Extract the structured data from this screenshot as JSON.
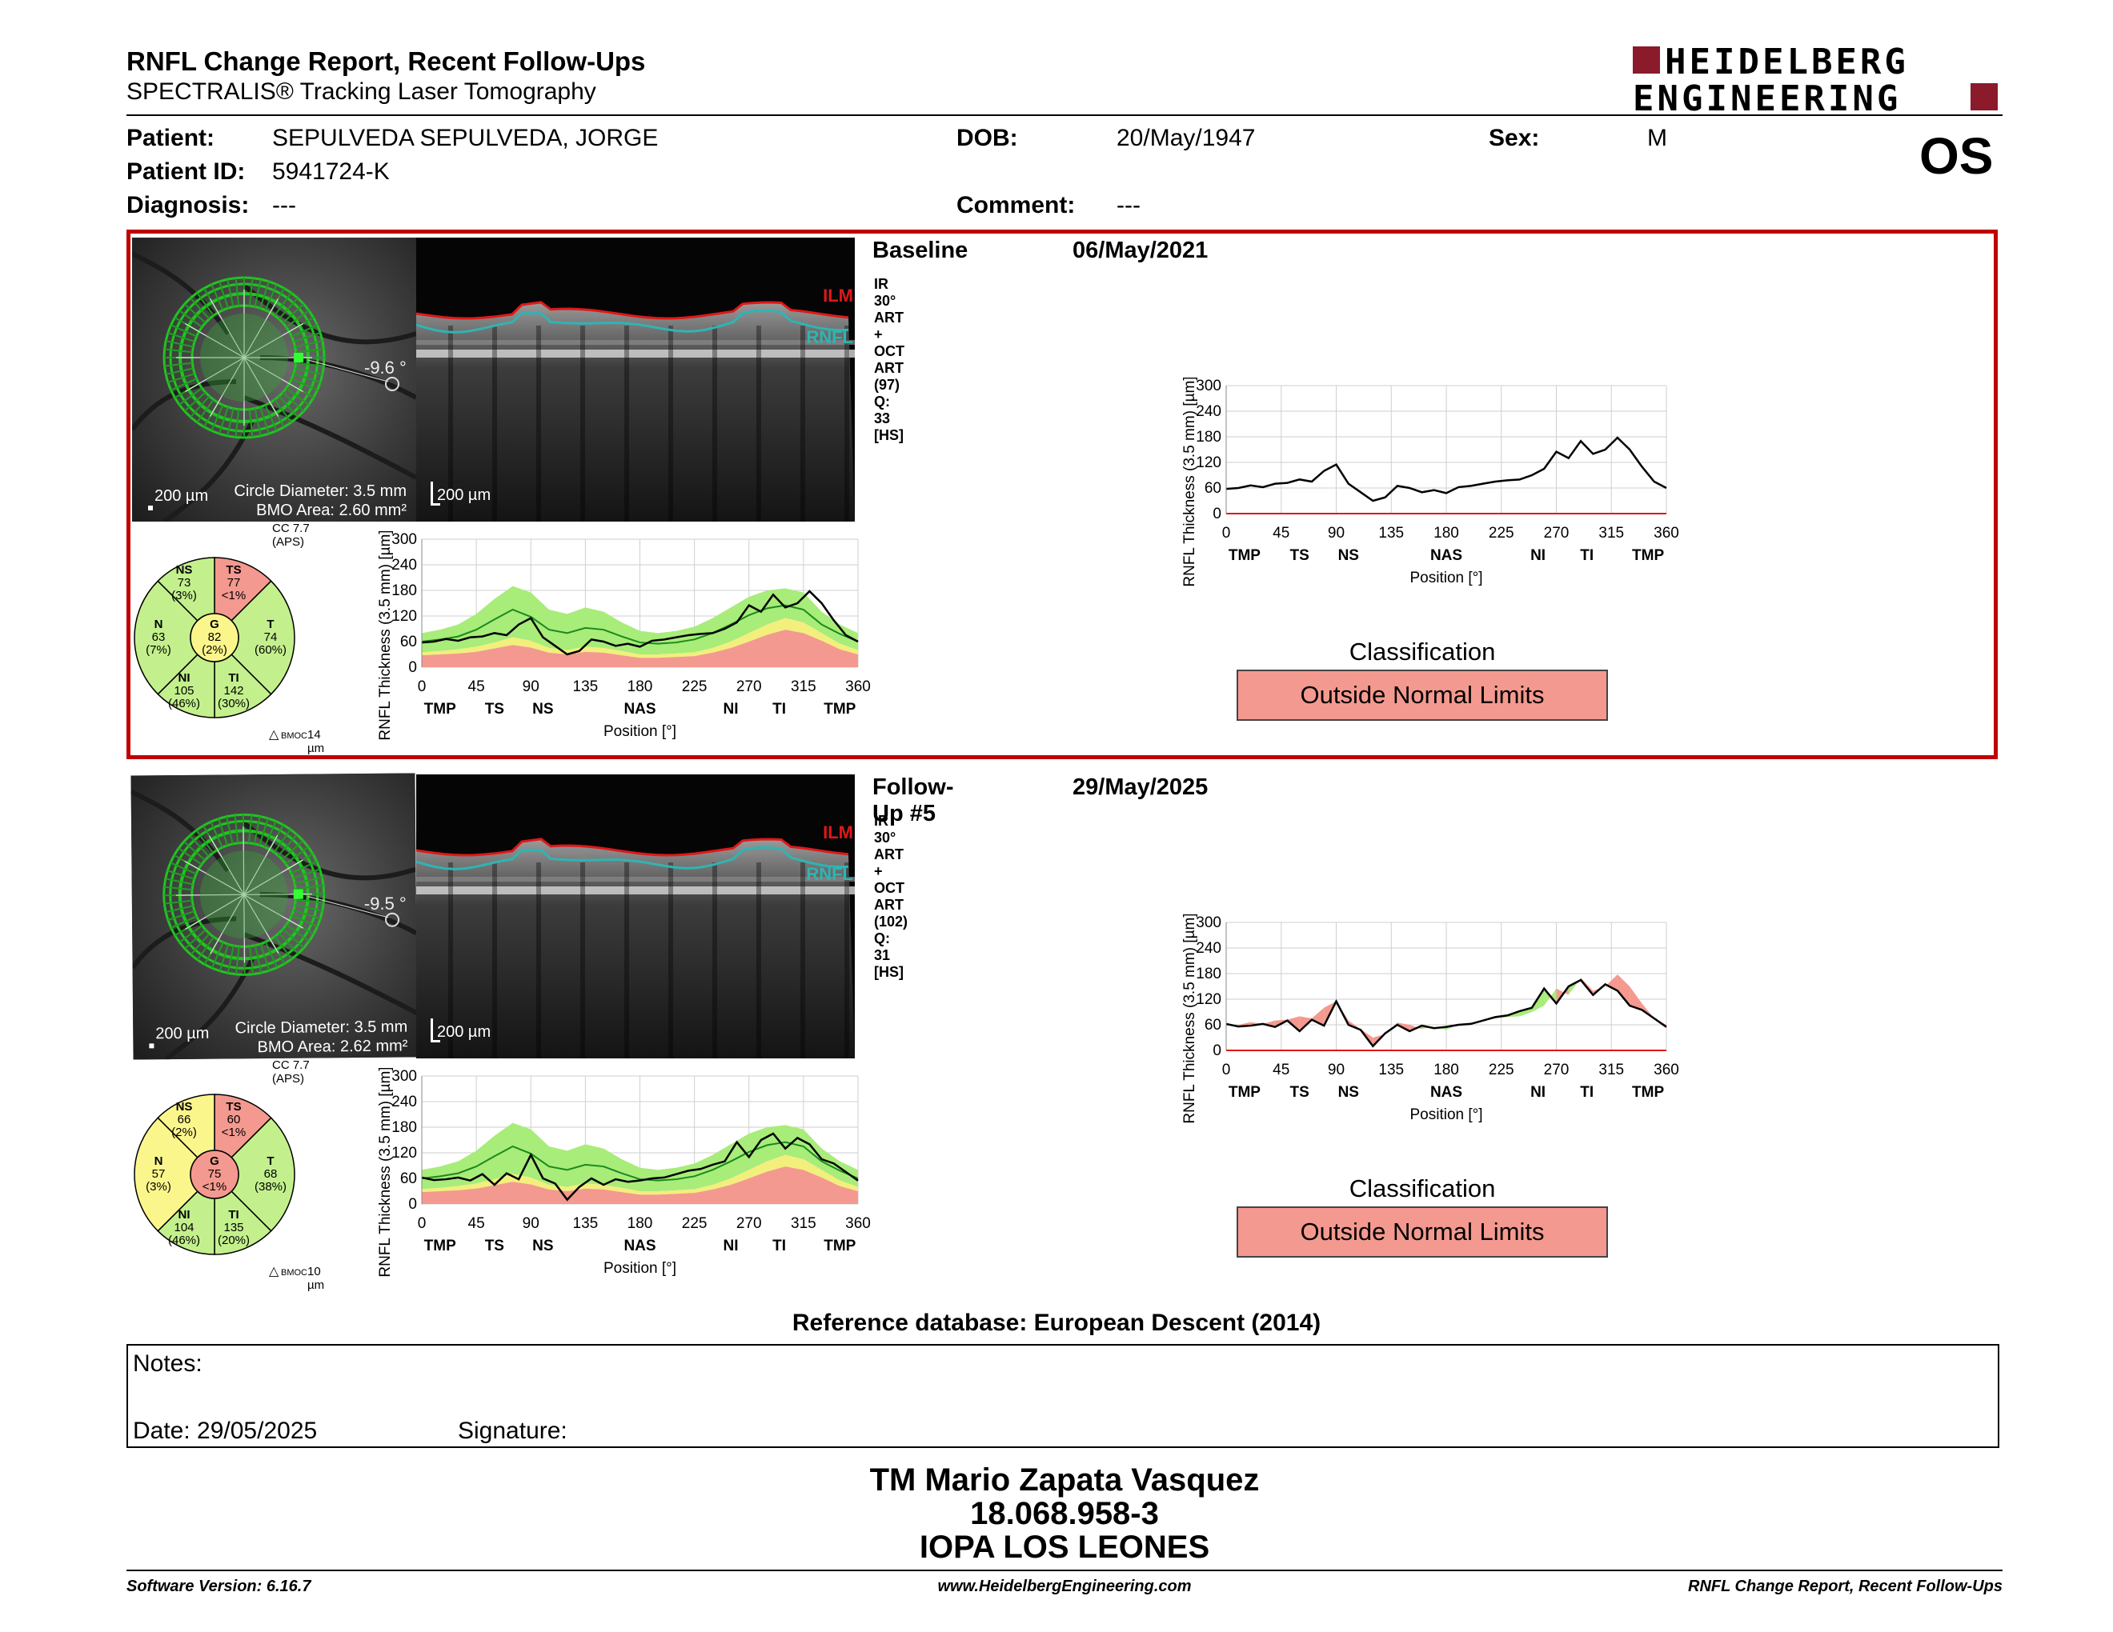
{
  "header": {
    "title": "RNFL Change Report, Recent Follow-Ups",
    "subtitle": "SPECTRALIS® Tracking Laser Tomography",
    "logo_line1": "HEIDELBERG",
    "logo_line2": "ENGINEERING",
    "eye": "OS"
  },
  "patient": {
    "patient_label": "Patient:",
    "patient_value": "SEPULVEDA SEPULVEDA, JORGE",
    "dob_label": "DOB:",
    "dob_value": "20/May/1947",
    "sex_label": "Sex:",
    "sex_value": "M",
    "id_label": "Patient ID:",
    "id_value": "5941724-K",
    "diagnosis_label": "Diagnosis:",
    "diagnosis_value": "---",
    "comment_label": "Comment:",
    "comment_value": "---"
  },
  "exams": [
    {
      "label": "Baseline",
      "date": "06/May/2021",
      "scan_info": "IR 30° ART + OCT ART (97) Q: 33 [HS]",
      "angle": "-9.6 °",
      "scale": "200 µm",
      "circle_diameter": "Circle Diameter: 3.5 mm",
      "bmo_area": "BMO Area: 2.60 mm²",
      "oct_scale": "200 µm",
      "ilm": "ILM",
      "rnfl": "RNFL",
      "cc": "CC 7.7 (APS)",
      "bmoc": "14 µm",
      "sectors": {
        "NS": {
          "name": "NS",
          "value": "73",
          "pct": "(3%)",
          "color": "#c3f08c"
        },
        "TS": {
          "name": "TS",
          "value": "77",
          "pct": "<1%",
          "color": "#f4998f"
        },
        "N": {
          "name": "N",
          "value": "63",
          "pct": "(7%)",
          "color": "#c3f08c"
        },
        "G": {
          "name": "G",
          "value": "82",
          "pct": "(2%)",
          "color": "#fbf68c"
        },
        "T": {
          "name": "T",
          "value": "74",
          "pct": "(60%)",
          "color": "#c3f08c"
        },
        "NI": {
          "name": "NI",
          "value": "105",
          "pct": "(46%)",
          "color": "#c3f08c"
        },
        "TI": {
          "name": "TI",
          "value": "142",
          "pct": "(30%)",
          "color": "#c3f08c"
        }
      },
      "classification_title": "Classification",
      "classification": "Outside Normal Limits"
    },
    {
      "label": "Follow-Up #5",
      "date": "29/May/2025",
      "scan_info": "IR 30° ART + OCT ART (102) Q: 31 [HS]",
      "angle": "-9.5 °",
      "scale": "200 µm",
      "circle_diameter": "Circle Diameter: 3.5 mm",
      "bmo_area": "BMO Area: 2.62 mm²",
      "oct_scale": "200 µm",
      "ilm": "ILM",
      "rnfl": "RNFL",
      "cc": "CC 7.7 (APS)",
      "bmoc": "10 µm",
      "sectors": {
        "NS": {
          "name": "NS",
          "value": "66",
          "pct": "(2%)",
          "color": "#fbf68c"
        },
        "TS": {
          "name": "TS",
          "value": "60",
          "pct": "<1%",
          "color": "#f4998f"
        },
        "N": {
          "name": "N",
          "value": "57",
          "pct": "(3%)",
          "color": "#fbf68c"
        },
        "G": {
          "name": "G",
          "value": "75",
          "pct": "<1%",
          "color": "#f4998f"
        },
        "T": {
          "name": "T",
          "value": "68",
          "pct": "(38%)",
          "color": "#c3f08c"
        },
        "NI": {
          "name": "NI",
          "value": "104",
          "pct": "(46%)",
          "color": "#c3f08c"
        },
        "TI": {
          "name": "TI",
          "value": "135",
          "pct": "(20%)",
          "color": "#c3f08c"
        }
      },
      "classification_title": "Classification",
      "classification": "Outside Normal Limits"
    }
  ],
  "chart_data": {
    "type": "line",
    "xlabel": "Position [°]",
    "ylabel": "RNFL Thickness (3.5 mm) [µm]",
    "xlim": [
      0,
      360
    ],
    "ylim": [
      0,
      300
    ],
    "xticks": [
      "0",
      "45",
      "90",
      "135",
      "180",
      "225",
      "270",
      "315",
      "360"
    ],
    "yticks": [
      "0",
      "60",
      "120",
      "180",
      "240",
      "300"
    ],
    "region_labels": [
      {
        "label": "TMP",
        "pos": 15
      },
      {
        "label": "TS",
        "pos": 60
      },
      {
        "label": "NS",
        "pos": 100
      },
      {
        "label": "NAS",
        "pos": 180
      },
      {
        "label": "NI",
        "pos": 255
      },
      {
        "label": "TI",
        "pos": 295
      },
      {
        "label": "TMP",
        "pos": 345
      }
    ],
    "grid": true,
    "normative": {
      "x": [
        0,
        15,
        30,
        45,
        60,
        75,
        90,
        105,
        120,
        135,
        150,
        165,
        180,
        195,
        210,
        225,
        240,
        255,
        270,
        285,
        300,
        315,
        330,
        345,
        360
      ],
      "lower5": [
        35,
        38,
        42,
        48,
        58,
        70,
        62,
        45,
        40,
        48,
        45,
        38,
        30,
        30,
        32,
        35,
        45,
        60,
        80,
        100,
        115,
        105,
        80,
        55,
        40
      ],
      "lower1": [
        28,
        30,
        32,
        36,
        44,
        52,
        46,
        34,
        30,
        36,
        34,
        28,
        22,
        22,
        24,
        26,
        34,
        45,
        60,
        76,
        88,
        80,
        62,
        42,
        30
      ],
      "upper95": [
        80,
        88,
        100,
        125,
        160,
        190,
        175,
        135,
        125,
        140,
        130,
        105,
        85,
        80,
        85,
        95,
        115,
        140,
        165,
        180,
        185,
        175,
        130,
        100,
        80
      ],
      "mean": [
        60,
        65,
        72,
        88,
        112,
        135,
        118,
        88,
        80,
        92,
        88,
        72,
        58,
        55,
        58,
        65,
        80,
        100,
        122,
        138,
        145,
        135,
        100,
        78,
        60
      ]
    },
    "baseline": {
      "x": [
        0,
        10,
        20,
        30,
        40,
        50,
        60,
        70,
        80,
        90,
        100,
        110,
        120,
        130,
        140,
        150,
        160,
        170,
        180,
        190,
        200,
        210,
        220,
        230,
        240,
        250,
        260,
        270,
        280,
        290,
        300,
        310,
        320,
        330,
        340,
        350,
        360
      ],
      "values": [
        58,
        60,
        66,
        62,
        70,
        72,
        80,
        75,
        100,
        115,
        70,
        50,
        30,
        38,
        65,
        60,
        50,
        55,
        48,
        62,
        65,
        70,
        75,
        78,
        80,
        90,
        105,
        145,
        130,
        170,
        140,
        150,
        178,
        150,
        110,
        75,
        60
      ]
    },
    "followup": {
      "x": [
        0,
        10,
        20,
        30,
        40,
        50,
        60,
        70,
        80,
        90,
        100,
        110,
        120,
        130,
        140,
        150,
        160,
        170,
        180,
        190,
        200,
        210,
        220,
        230,
        240,
        250,
        260,
        270,
        280,
        290,
        300,
        310,
        320,
        330,
        340,
        350,
        360
      ],
      "values": [
        62,
        56,
        58,
        62,
        55,
        70,
        45,
        72,
        58,
        115,
        60,
        48,
        10,
        40,
        60,
        45,
        58,
        52,
        55,
        60,
        62,
        70,
        78,
        82,
        92,
        100,
        145,
        110,
        150,
        165,
        130,
        155,
        140,
        105,
        95,
        75,
        55
      ]
    }
  },
  "reference_db": "Reference database: European Descent (2014)",
  "notes": {
    "notes_label": "Notes:",
    "date_label": "Date: 29/05/2025",
    "signature_label": "Signature:"
  },
  "operator": {
    "name": "TM Mario Zapata Vasquez",
    "id": "18.068.958-3",
    "institution": "IOPA LOS LEONES"
  },
  "footer": {
    "software": "Software Version: 6.16.7",
    "website": "www.HeidelbergEngineering.com",
    "report": "RNFL Change Report, Recent Follow-Ups"
  },
  "colors": {
    "accent_red": "#c00000",
    "logo_red": "#8b1a2b",
    "within": "#c3f08c",
    "borderline": "#fbf68c",
    "outside": "#f4998f"
  }
}
